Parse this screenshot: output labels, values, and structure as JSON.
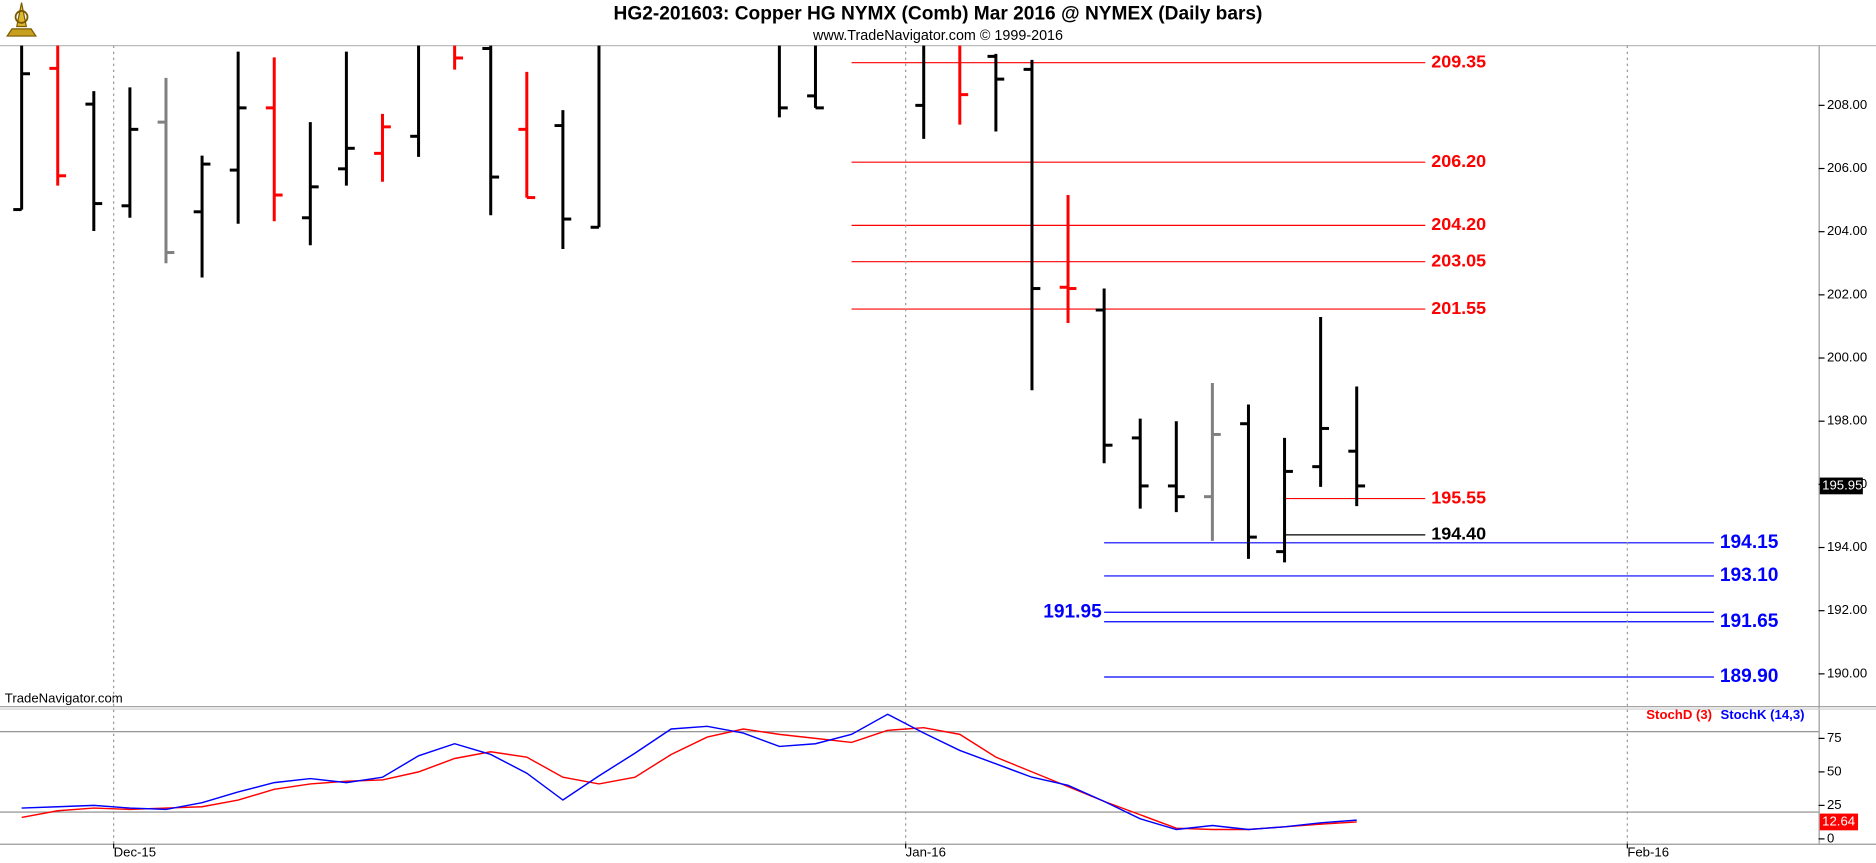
{
  "chart_data": [
    {
      "type": "ohlc",
      "title": "HG2-201603:  Copper HG NYMX (Comb) Mar 2016 @ NYMEX  (Daily bars)",
      "subtitle": "www.TradeNavigator.com © 1999-2016",
      "watermark": "TradeNavigator.com",
      "x": [
        0,
        1,
        2,
        3,
        4,
        5,
        6,
        7,
        8,
        9,
        10,
        11,
        12,
        13,
        14,
        15,
        16,
        21,
        22,
        25,
        26,
        27,
        28,
        29,
        30,
        31,
        32,
        33,
        34,
        35,
        36,
        37
      ],
      "open": [
        204.7,
        209.17,
        208.04,
        204.82,
        207.47,
        204.63,
        205.95,
        207.92,
        204.44,
        205.99,
        206.48,
        207.02,
        210.2,
        209.8,
        207.24,
        207.36,
        204.14,
        210.1,
        208.3,
        208.0,
        210.0,
        209.55,
        209.14,
        202.24,
        201.52,
        197.47,
        195.95,
        195.61,
        197.92,
        193.87,
        196.56,
        197.05
      ],
      "high": [
        210.0,
        210.0,
        208.45,
        208.57,
        208.87,
        206.41,
        209.7,
        209.52,
        207.47,
        209.7,
        207.73,
        210.2,
        210.5,
        210.3,
        209.06,
        207.85,
        210.4,
        210.5,
        210.2,
        210.3,
        210.4,
        209.63,
        209.44,
        205.16,
        202.2,
        198.08,
        198.0,
        199.21,
        198.53,
        197.47,
        201.3,
        199.1
      ],
      "low": [
        204.7,
        205.46,
        204.02,
        204.44,
        203.0,
        202.55,
        204.25,
        204.33,
        203.57,
        205.46,
        205.58,
        206.37,
        209.13,
        204.52,
        205.08,
        203.45,
        204.14,
        207.62,
        207.92,
        206.94,
        207.39,
        207.17,
        198.98,
        201.11,
        196.67,
        195.23,
        195.12,
        194.21,
        193.64,
        193.53,
        195.92,
        195.31
      ],
      "close": [
        209.0,
        205.77,
        204.89,
        207.24,
        203.34,
        206.14,
        207.92,
        205.16,
        205.42,
        206.64,
        207.32,
        209.95,
        209.5,
        205.73,
        205.08,
        204.4,
        210.1,
        207.92,
        207.92,
        209.95,
        208.34,
        208.83,
        202.2,
        202.2,
        197.24,
        195.95,
        195.61,
        197.58,
        194.33,
        196.41,
        197.77,
        195.95
      ],
      "colors": [
        "#000000",
        "#ff0000",
        "#000000",
        "#000000",
        "#808080",
        "#000000",
        "#000000",
        "#ff0000",
        "#000000",
        "#000000",
        "#ff0000",
        "#000000",
        "#ff0000",
        "#000000",
        "#ff0000",
        "#000000",
        "#000000",
        "#000000",
        "#000000",
        "#000000",
        "#ff0000",
        "#000000",
        "#000000",
        "#ff0000",
        "#000000",
        "#000000",
        "#000000",
        "#808080",
        "#000000",
        "#000000",
        "#000000",
        "#000000"
      ],
      "xlim": [
        -0.6,
        49.8
      ],
      "ylim": [
        188.98,
        209.89
      ],
      "yticks": [
        {
          "value": 190,
          "label": "190.00"
        },
        {
          "value": 192,
          "label": "192.00"
        },
        {
          "value": 194,
          "label": "194.00"
        },
        {
          "value": 196,
          "label": "196.00"
        },
        {
          "value": 198,
          "label": "198.00"
        },
        {
          "value": 200,
          "label": "200.00"
        },
        {
          "value": 202,
          "label": "202.00"
        },
        {
          "value": 204,
          "label": "204.00"
        },
        {
          "value": 206,
          "label": "206.00"
        },
        {
          "value": 208,
          "label": "208.00"
        }
      ],
      "levels": [
        {
          "value": 209.35,
          "label": "209.35",
          "color": "#ff0000",
          "start": 23.0,
          "end": 38.9,
          "side": "right"
        },
        {
          "value": 206.2,
          "label": "206.20",
          "color": "#ff0000",
          "start": 23.0,
          "end": 38.9,
          "side": "right"
        },
        {
          "value": 204.2,
          "label": "204.20",
          "color": "#ff0000",
          "start": 23.0,
          "end": 38.9,
          "side": "right"
        },
        {
          "value": 203.05,
          "label": "203.05",
          "color": "#ff0000",
          "start": 23.0,
          "end": 38.9,
          "side": "right"
        },
        {
          "value": 201.55,
          "label": "201.55",
          "color": "#ff0000",
          "start": 23.0,
          "end": 38.9,
          "side": "right"
        },
        {
          "value": 195.55,
          "label": "195.55",
          "color": "#ff0000",
          "start": 35.0,
          "end": 38.9,
          "side": "right"
        },
        {
          "value": 194.4,
          "label": "194.40",
          "color": "#000000",
          "start": 35.0,
          "end": 38.9,
          "side": "right"
        },
        {
          "value": 194.15,
          "label": "194.15",
          "color": "#0000ff",
          "start": 30.0,
          "end": 46.9,
          "side": "right"
        },
        {
          "value": 193.1,
          "label": "193.10",
          "color": "#0000ff",
          "start": 30.0,
          "end": 46.9,
          "side": "right"
        },
        {
          "value": 191.95,
          "label": "191.95",
          "color": "#0000ff",
          "start": 30.0,
          "end": 46.9,
          "side": "left"
        },
        {
          "value": 191.65,
          "label": "191.65",
          "color": "#0000ff",
          "start": 30.0,
          "end": 46.9,
          "side": "right"
        },
        {
          "value": 189.9,
          "label": "189.90",
          "color": "#0000ff",
          "start": 30.0,
          "end": 46.9,
          "side": "right"
        }
      ]
    },
    {
      "type": "line",
      "x": [
        0,
        1,
        2,
        3,
        4,
        5,
        6,
        7,
        8,
        9,
        10,
        11,
        12,
        13,
        14,
        15,
        16,
        17,
        18,
        19,
        20,
        21,
        22,
        23,
        24,
        25,
        26,
        27,
        28,
        29,
        30,
        31,
        32,
        33,
        34,
        35,
        36,
        37
      ],
      "series": [
        {
          "name": "StochD (3)",
          "color": "#ff0000",
          "values": [
            16,
            21,
            23,
            22,
            23,
            24,
            29,
            37,
            41,
            43,
            44,
            50,
            60,
            65,
            61,
            46,
            41,
            46,
            63,
            76,
            82,
            78,
            75,
            72,
            81,
            83,
            78,
            61,
            50,
            39,
            28,
            18,
            8,
            7,
            7,
            9,
            11,
            12.64
          ]
        },
        {
          "name": "StochK (14,3)",
          "color": "#0000ff",
          "values": [
            23,
            24,
            25,
            23,
            22,
            27,
            35,
            42,
            45,
            42,
            46,
            62,
            71,
            63,
            49,
            29,
            47,
            64,
            82,
            84,
            79,
            69,
            71,
            78,
            93,
            79,
            66,
            56,
            46,
            40,
            28,
            15,
            7,
            10,
            7,
            9,
            12,
            14
          ]
        }
      ],
      "ref_lines": [
        20,
        80
      ],
      "xlim": [
        -0.6,
        49.8
      ],
      "ylim": [
        0,
        97
      ],
      "yticks": [
        0,
        25,
        50,
        75
      ],
      "xticks": [
        {
          "value": 2.55,
          "label": "Dec-15"
        },
        {
          "value": 24.5,
          "label": "Jan-16"
        },
        {
          "value": 44.5,
          "label": "Feb-16"
        }
      ]
    }
  ]
}
